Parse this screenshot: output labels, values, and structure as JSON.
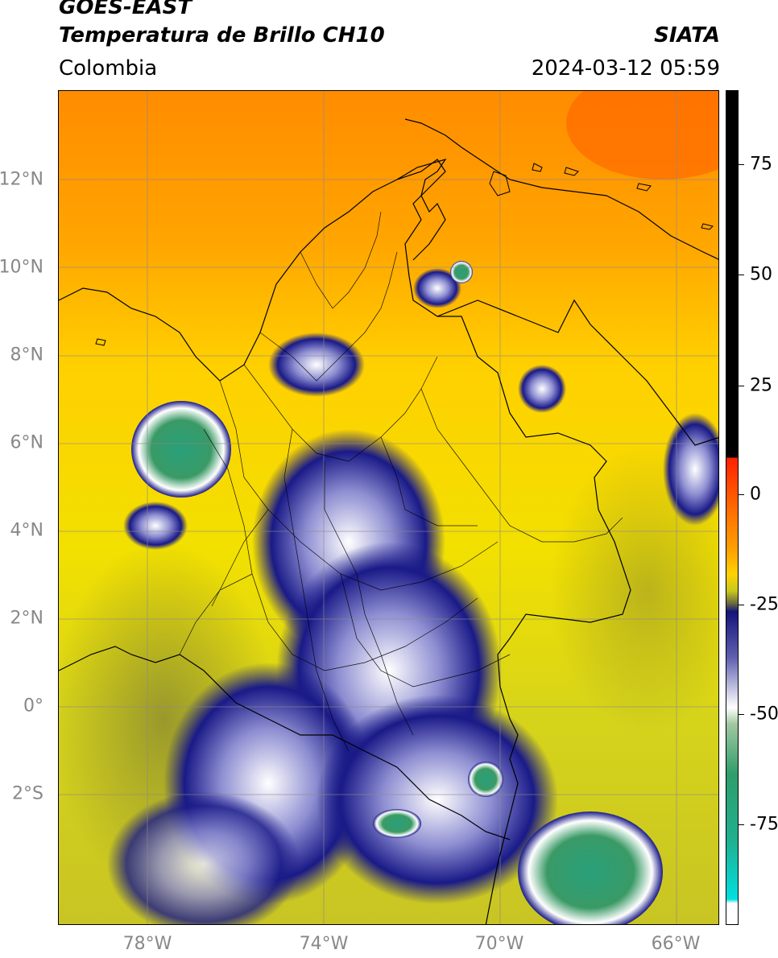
{
  "header": {
    "title_line1": "GOES-EAST",
    "title_line2": "Temperatura de Brillo CH10",
    "organization": "SIATA",
    "region": "Colombia",
    "timestamp": "2024-03-12 05:59"
  },
  "axes": {
    "lat_ticks": [
      "12°N",
      "10°N",
      "8°N",
      "6°N",
      "4°N",
      "2°N",
      "0°",
      "2°S"
    ],
    "lon_ticks": [
      "78°W",
      "74°W",
      "70°W",
      "66°W"
    ]
  },
  "colorbar": {
    "ticks": [
      "75",
      "50",
      "25",
      "0",
      "-25",
      "-50",
      "-75"
    ]
  },
  "colors": {
    "hot": "#ff6a00",
    "warm": "#ffd200",
    "mid": "#c8c81e",
    "cold_blue": "#14147a",
    "very_cold": "#ffffff",
    "coldest_green": "#2e9e6a",
    "extreme": "#00e0e0"
  }
}
